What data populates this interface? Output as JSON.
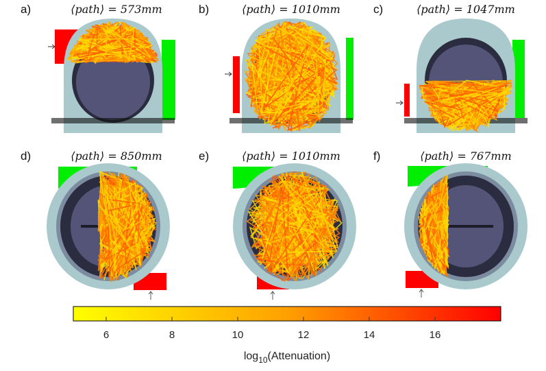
{
  "panels": [
    {
      "label": "a)",
      "path_text": "⟨path⟩ = 573mm",
      "path_mm": 573,
      "view": "coronal"
    },
    {
      "label": "b)",
      "path_text": "⟨path⟩ = 1010mm",
      "path_mm": 1010,
      "view": "coronal"
    },
    {
      "label": "c)",
      "path_text": "⟨path⟩ = 1047mm",
      "path_mm": 1047,
      "view": "coronal"
    },
    {
      "label": "d)",
      "path_text": "⟨path⟩ = 850mm",
      "path_mm": 850,
      "view": "axial"
    },
    {
      "label": "e)",
      "path_text": "⟨path⟩ = 1010mm",
      "path_mm": 1010,
      "view": "axial"
    },
    {
      "label": "f)",
      "path_text": "⟨path⟩ = 767mm",
      "path_mm": 767,
      "view": "axial"
    }
  ],
  "colorbar": {
    "label": "log10(Attenuation)",
    "label_base": "log",
    "label_sub": "10",
    "label_rest": "(Attenuation)",
    "range": [
      5,
      18
    ],
    "ticks": [
      "6",
      "8",
      "10",
      "12",
      "14",
      "16"
    ],
    "colors": [
      "#ffff00",
      "#ffa500",
      "#ff0000"
    ]
  },
  "colors": {
    "source": "#ff0000",
    "detector": "#00ee00",
    "scalp": "#a9c9cc",
    "brain": "#545478",
    "csf": "#2c2c40"
  }
}
